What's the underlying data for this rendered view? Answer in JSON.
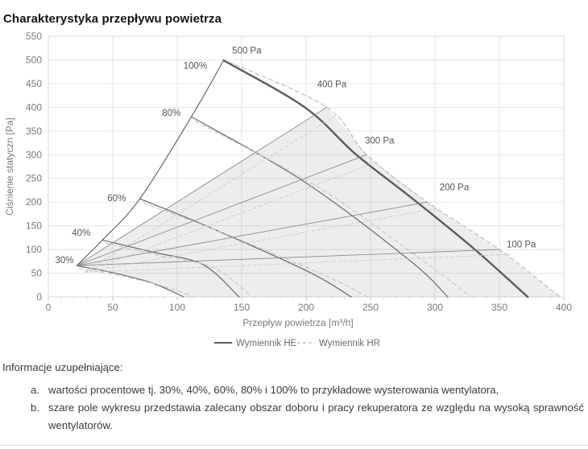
{
  "page": {
    "title": "Charakterystyka przepływu powietrza"
  },
  "chart_data": {
    "type": "line",
    "title": "Charakterystyka przepływu powietrza",
    "xlabel": "Przepływ powietrza [m³/h]",
    "ylabel": "Ciśnienie statyczn [Pa]",
    "xlim": [
      0,
      400
    ],
    "ylim": [
      0,
      550
    ],
    "x_ticks": [
      0,
      50,
      100,
      150,
      200,
      250,
      300,
      350,
      400
    ],
    "x_minor_step": 10,
    "y_ticks": [
      0,
      50,
      100,
      150,
      200,
      250,
      300,
      350,
      400,
      450,
      500,
      550
    ],
    "grid": true,
    "legend_position": "bottom-center",
    "legend": [
      {
        "name": "Wymiennik HE",
        "style": "solid"
      },
      {
        "name": "Wymiennik HR",
        "style": "dashed"
      }
    ],
    "units": {
      "x": "m³/h",
      "y": "Pa"
    },
    "fan_settings_percent": [
      30,
      40,
      60,
      80,
      100
    ],
    "series": [
      {
        "id": "boundary-max-pressure",
        "role": "boundary",
        "points": [
          [
            22,
            66
          ],
          [
            42,
            120
          ],
          [
            71,
            207
          ],
          [
            111,
            380
          ],
          [
            136,
            499
          ]
        ]
      },
      {
        "id": "he-30",
        "role": "he",
        "pct": 30,
        "points": [
          [
            22,
            66
          ],
          [
            55,
            48
          ],
          [
            82,
            28
          ],
          [
            105,
            0
          ]
        ]
      },
      {
        "id": "he-40",
        "role": "he",
        "pct": 40,
        "points": [
          [
            42,
            120
          ],
          [
            80,
            95
          ],
          [
            120,
            68
          ],
          [
            148,
            0
          ]
        ]
      },
      {
        "id": "he-60",
        "role": "he",
        "pct": 60,
        "points": [
          [
            71,
            207
          ],
          [
            125,
            147
          ],
          [
            202,
            53
          ],
          [
            235,
            0
          ]
        ]
      },
      {
        "id": "he-80",
        "role": "he",
        "pct": 80,
        "points": [
          [
            111,
            380
          ],
          [
            198,
            244
          ],
          [
            280,
            78
          ],
          [
            310,
            0
          ]
        ]
      },
      {
        "id": "he-100",
        "role": "he",
        "pct": 100,
        "points": [
          [
            136,
            499
          ],
          [
            199,
            400
          ],
          [
            239,
            300
          ],
          [
            286,
            200
          ],
          [
            331,
            100
          ],
          [
            372,
            0
          ]
        ]
      },
      {
        "id": "hr-30",
        "role": "hr",
        "pct": 30,
        "points": [
          [
            24,
            60
          ],
          [
            60,
            42
          ],
          [
            90,
            22
          ],
          [
            113,
            0
          ]
        ]
      },
      {
        "id": "hr-40",
        "role": "hr",
        "pct": 40,
        "points": [
          [
            44,
            114
          ],
          [
            85,
            88
          ],
          [
            128,
            62
          ],
          [
            158,
            0
          ]
        ]
      },
      {
        "id": "hr-60",
        "role": "hr",
        "pct": 60,
        "points": [
          [
            74,
            198
          ],
          [
            133,
            138
          ],
          [
            214,
            46
          ],
          [
            248,
            0
          ]
        ]
      },
      {
        "id": "hr-80",
        "role": "hr",
        "pct": 80,
        "points": [
          [
            114,
            370
          ],
          [
            209,
            232
          ],
          [
            294,
            70
          ],
          [
            328,
            0
          ]
        ]
      },
      {
        "id": "hr-100",
        "role": "hr",
        "pct": 100,
        "points": [
          [
            140,
            496
          ],
          [
            216,
            400
          ],
          [
            247,
            300
          ],
          [
            294,
            200
          ],
          [
            350,
            100
          ],
          [
            397,
            0
          ]
        ]
      },
      {
        "id": "sys-400",
        "role": "sys",
        "pa": 400,
        "points": [
          [
            22,
            66
          ],
          [
            216,
            400
          ]
        ]
      },
      {
        "id": "sys-300",
        "role": "sys",
        "pa": 300,
        "points": [
          [
            22,
            66
          ],
          [
            247,
            300
          ]
        ]
      },
      {
        "id": "sys-200",
        "role": "sys",
        "pa": 200,
        "points": [
          [
            22,
            66
          ],
          [
            294,
            200
          ]
        ]
      },
      {
        "id": "sys-100",
        "role": "sys",
        "pa": 100,
        "points": [
          [
            22,
            66
          ],
          [
            350,
            100
          ]
        ]
      },
      {
        "id": "sysd-400",
        "role": "sysd",
        "pa": 400,
        "points": [
          [
            28,
            52
          ],
          [
            224,
            384
          ]
        ]
      },
      {
        "id": "sysd-300",
        "role": "sysd",
        "pa": 300,
        "points": [
          [
            28,
            52
          ],
          [
            256,
            286
          ]
        ]
      },
      {
        "id": "sysd-200",
        "role": "sysd",
        "pa": 200,
        "points": [
          [
            28,
            52
          ],
          [
            304,
            188
          ]
        ]
      },
      {
        "id": "sysd-100",
        "role": "sysd",
        "pa": 100,
        "points": [
          [
            28,
            52
          ],
          [
            360,
            90
          ]
        ]
      }
    ],
    "shade_region": {
      "meaning": "zalecany obszar doboru i pracy rekuperatora",
      "polygon": [
        [
          22,
          66
        ],
        [
          216,
          400
        ],
        [
          232,
          350
        ],
        [
          247,
          300
        ],
        [
          270,
          250
        ],
        [
          294,
          200
        ],
        [
          321,
          150
        ],
        [
          350,
          100
        ],
        [
          373,
          50
        ],
        [
          397,
          0
        ],
        [
          105,
          0
        ],
        [
          96,
          12
        ],
        [
          82,
          28
        ],
        [
          68,
          40
        ],
        [
          55,
          48
        ],
        [
          38,
          58
        ]
      ]
    },
    "point_labels": [
      {
        "text": "500 Pa",
        "q": 154,
        "p": 520
      },
      {
        "text": "400 Pa",
        "q": 220,
        "p": 449
      },
      {
        "text": "300 Pa",
        "q": 257,
        "p": 330
      },
      {
        "text": "200 Pa",
        "q": 315,
        "p": 232
      },
      {
        "text": "100 Pa",
        "q": 367,
        "p": 111
      },
      {
        "text": "30%",
        "q": 12.5,
        "p": 78
      },
      {
        "text": "40%",
        "q": 25.5,
        "p": 136
      },
      {
        "text": "60%",
        "q": 53,
        "p": 209
      },
      {
        "text": "80%",
        "q": 95.5,
        "p": 389
      },
      {
        "text": "100%",
        "q": 114,
        "p": 488
      }
    ],
    "colors": {
      "he_line": "#686868",
      "he_100_line": "#5c5c5c",
      "hr_line": "#c6c6c6",
      "sys_line": "#8a8a8a",
      "sys_dashed_line": "#cccccc",
      "grid": "#e6e6e6",
      "plot_border": "#d9d9d9",
      "tick": "#c9c9c9",
      "axis_text": "#7a7a7a",
      "curve_label_text": "#565656",
      "shade_fill": "rgba(0,0,0,0.072)"
    }
  },
  "notes": {
    "heading": "Informacje uzupełniające:",
    "items": [
      {
        "marker": "a.",
        "text": "wartości procentowe tj. 30%, 40%, 60%, 80% i 100% to przykładowe wysterowania wentylatora,"
      },
      {
        "marker": "b.",
        "text": "szare pole wykresu przedstawia zalecany obszar doboru i pracy rekuperatora ze względu na wysoką sprawność wentylatorów."
      }
    ]
  }
}
